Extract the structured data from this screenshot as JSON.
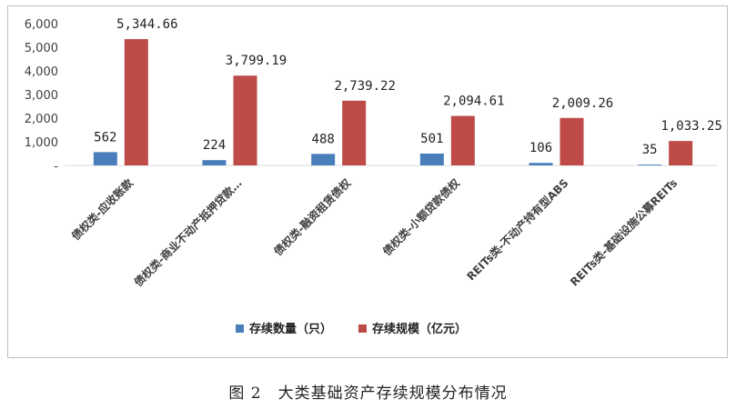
{
  "chart_data": {
    "type": "bar",
    "categories": [
      "债权类-应收账款",
      "债权类-商业不动产抵押贷款…",
      "债权类-融资租赁债权",
      "债权类-小额贷款债权",
      "REITs类-不动产持有型ABS",
      "REITs类-基础设施公募REITs"
    ],
    "series": [
      {
        "name": "存续数量（只）",
        "values": [
          562,
          224,
          488,
          501,
          106,
          35
        ],
        "labels": [
          "562",
          "224",
          "488",
          "501",
          "106",
          "35"
        ],
        "color": "#4a7ebb"
      },
      {
        "name": "存续规模（亿元）",
        "values": [
          5344.66,
          3799.19,
          2739.22,
          2094.61,
          2009.26,
          1033.25
        ],
        "labels": [
          "5,344.66",
          "3,799.19",
          "2,739.22",
          "2,094.61",
          "2,009.26",
          "1,033.25"
        ],
        "color": "#be4b48"
      }
    ],
    "y_ticks": [
      "-",
      "1,000",
      "2,000",
      "3,000",
      "4,000",
      "5,000",
      "6,000"
    ],
    "y_tick_values": [
      0,
      1000,
      2000,
      3000,
      4000,
      5000,
      6000
    ],
    "ylim": [
      0,
      6000
    ],
    "grid": false,
    "legend_position": "bottom"
  },
  "caption": "图 2　大类基础资产存续规模分布情况"
}
